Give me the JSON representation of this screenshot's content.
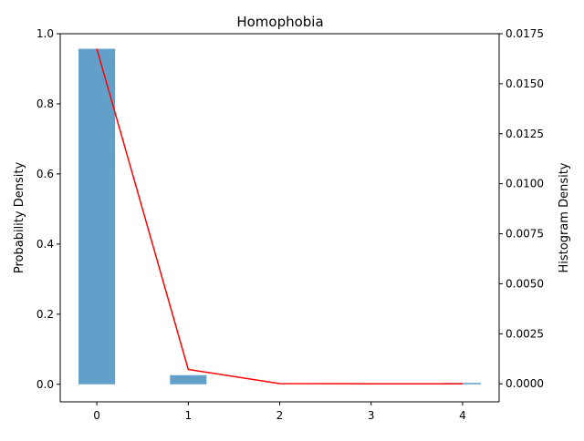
{
  "chart_data": {
    "type": "bar",
    "title": "Homophobia",
    "xlabel": "",
    "ylabel": "Probability Density",
    "ylabel_right": "Histogram Density",
    "x_ticks": [
      "0",
      "1",
      "2",
      "3",
      "4"
    ],
    "xlim": [
      -0.4,
      4.4
    ],
    "ylim": [
      -0.05,
      1.0
    ],
    "ylim_right": [
      -0.0009,
      0.0175
    ],
    "y_ticks_left": [
      "0.0",
      "0.2",
      "0.4",
      "0.6",
      "0.8",
      "1.0"
    ],
    "y_ticks_right": [
      "0.0000",
      "0.0025",
      "0.0050",
      "0.0075",
      "0.0100",
      "0.0125",
      "0.0150",
      "0.0175"
    ],
    "grid": false,
    "legend": "none",
    "series": [
      {
        "type": "bar",
        "axis": "left",
        "color": "#1f77b4",
        "opacity": 0.7,
        "bar_width": 0.4,
        "x": [
          0,
          1,
          2,
          3,
          4
        ],
        "values": [
          0.957,
          0.026,
          0.0,
          0.0,
          0.004
        ]
      },
      {
        "type": "line",
        "axis": "right",
        "color": "#ff0000",
        "x": [
          0,
          1,
          2,
          3,
          4
        ],
        "values": [
          0.01675,
          0.00072,
          1e-05,
          0.0,
          0.0
        ]
      }
    ]
  }
}
